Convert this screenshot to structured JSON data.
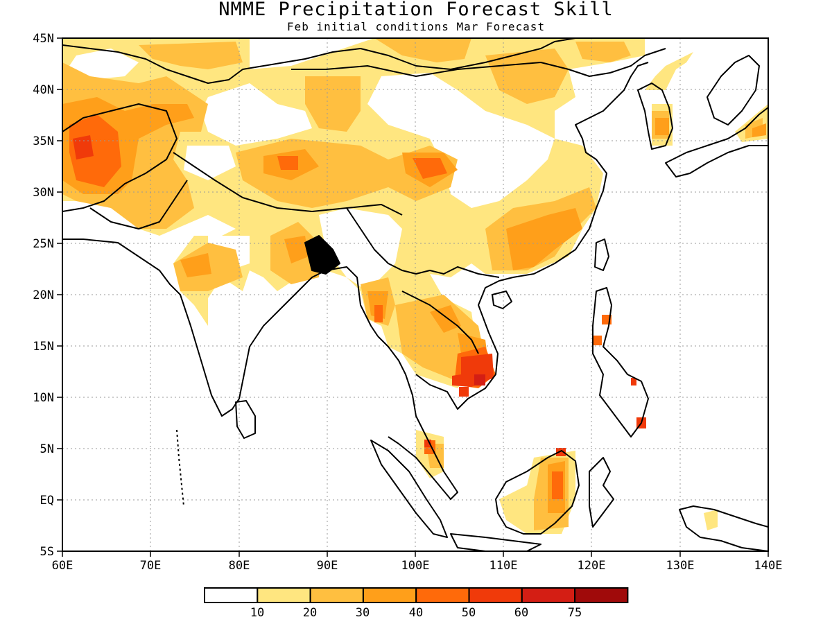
{
  "header": {
    "title": "NMME Precipitation Forecast Skill",
    "subtitle": "Feb initial conditions  Mar Forecast"
  },
  "map": {
    "lon_labels": [
      "60E",
      "70E",
      "80E",
      "90E",
      "100E",
      "110E",
      "120E",
      "130E",
      "140E"
    ],
    "lat_labels": [
      "45N",
      "40N",
      "35N",
      "30N",
      "25N",
      "20N",
      "15N",
      "10N",
      "5N",
      "EQ",
      "5S"
    ],
    "grid": true,
    "land_outline_color": "#000000"
  },
  "colorbar": {
    "labels": [
      "10",
      "20",
      "30",
      "40",
      "50",
      "60",
      "75"
    ],
    "colors": [
      "#ffffff",
      "#ffe680",
      "#ffbf40",
      "#ff9f1a",
      "#ff6a0a",
      "#f03a0a",
      "#d41e14",
      "#a00a0a"
    ]
  }
}
